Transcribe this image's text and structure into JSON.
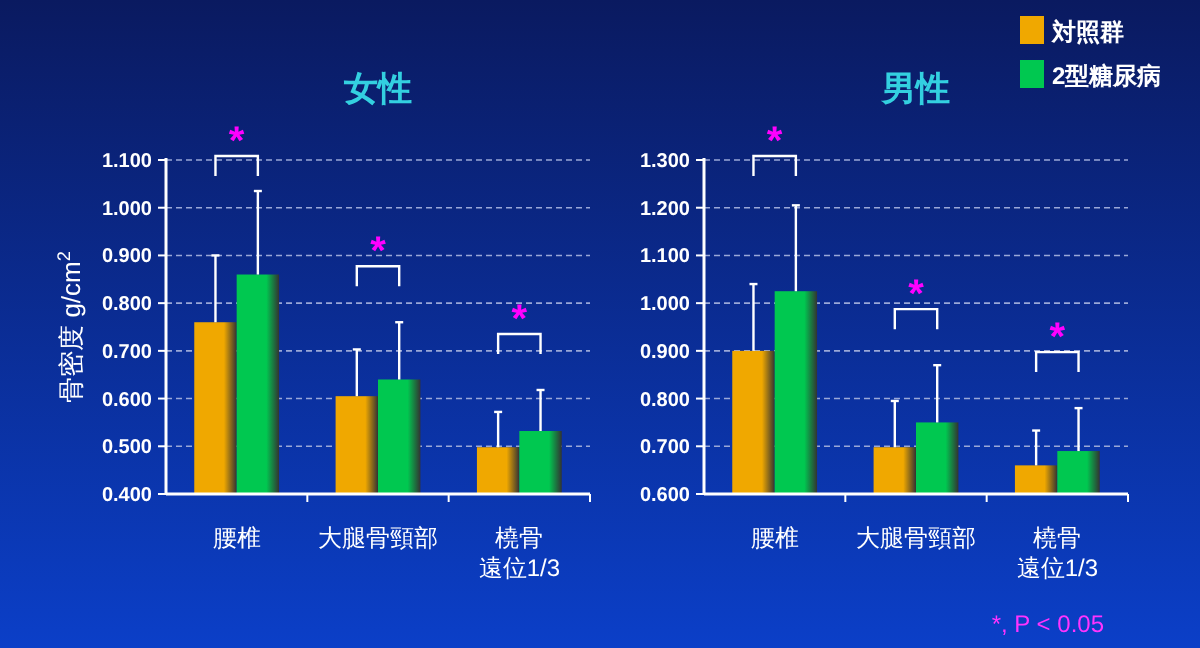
{
  "chart_data": [
    {
      "type": "bar",
      "title": "女性",
      "ylabel": "骨密度 g/cm$^{2}$",
      "categories": [
        "腰椎",
        "大腿骨頸部",
        "橈骨遠位1/3"
      ],
      "series": [
        {
          "color": "#f0a800",
          "values": [
            0.76,
            0.605,
            0.498
          ],
          "errors": [
            [
              0.76,
              0.9
            ],
            [
              0.605,
              0.703
            ],
            [
              0.498,
              0.572
            ]
          ]
        },
        {
          "color": "#00c850",
          "values": [
            0.86,
            0.64,
            0.532
          ],
          "errors": [
            [
              0.86,
              1.035
            ],
            [
              0.64,
              0.76
            ],
            [
              0.532,
              0.618
            ]
          ]
        }
      ],
      "ylim": [
        0.4,
        1.1
      ],
      "yticks": [
        {
          "value": 0.4,
          "label": "0.400"
        },
        {
          "value": 0.5,
          "label": "0.500"
        },
        {
          "value": 0.6,
          "label": "0.600"
        },
        {
          "value": 0.7,
          "label": "0.700"
        },
        {
          "value": 0.8,
          "label": "0.800"
        },
        {
          "value": 0.9,
          "label": "0.900"
        },
        {
          "value": 1.0,
          "label": "1.000"
        },
        {
          "value": 1.1,
          "label": "1.100"
        }
      ],
      "grid": "y",
      "legend": false,
      "annotations": [
        "*",
        "*",
        "*"
      ]
    },
    {
      "type": "bar",
      "title": "男性",
      "categories": [
        "腰椎",
        "大腿骨頸部",
        "橈骨遠位1/3"
      ],
      "series": [
        {
          "name": "対照群",
          "color": "#f0a800",
          "values": [
            0.9,
            0.698,
            0.66
          ],
          "errors": [
            [
              0.9,
              1.04
            ],
            [
              0.698,
              0.795
            ],
            [
              0.66,
              0.733
            ]
          ]
        },
        {
          "name": "2型糖尿病",
          "color": "#00c850",
          "values": [
            1.025,
            0.75,
            0.69
          ],
          "errors": [
            [
              1.025,
              1.205
            ],
            [
              0.75,
              0.87
            ],
            [
              0.69,
              0.78
            ]
          ]
        }
      ],
      "ylim": [
        0.6,
        1.3
      ],
      "yticks": [
        {
          "value": 0.6,
          "label": "0.600"
        },
        {
          "value": 0.7,
          "label": "0.700"
        },
        {
          "value": 0.8,
          "label": "0.800"
        },
        {
          "value": 0.9,
          "label": "0.900"
        },
        {
          "value": 1.0,
          "label": "1.000"
        },
        {
          "value": 1.1,
          "label": "1.100"
        },
        {
          "value": 1.2,
          "label": "1.200"
        },
        {
          "value": 1.3,
          "label": "1.300"
        }
      ],
      "grid": "y",
      "legend": "top right",
      "annotations": [
        "*",
        "*",
        "*",
        "*, P < 0.05"
      ]
    }
  ]
}
